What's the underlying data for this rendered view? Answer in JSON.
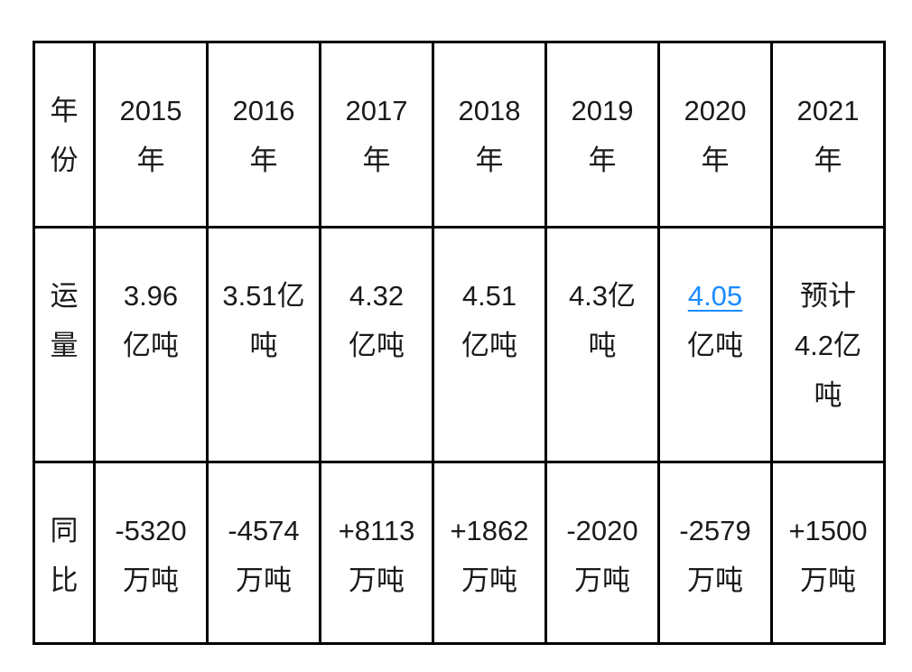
{
  "page": {
    "background_color": "#ffffff",
    "text_color": "#1a1a1a",
    "border_color": "#000000",
    "link_color": "#1a8cff"
  },
  "table": {
    "years": [
      "2015",
      "2016",
      "2017",
      "2018",
      "2019",
      "2020",
      "2021"
    ],
    "rows": [
      {
        "id": "year",
        "header_lines": [
          "年",
          "份"
        ],
        "cells": [
          {
            "lines": [
              "2015",
              "年"
            ]
          },
          {
            "lines": [
              "2016",
              "年"
            ]
          },
          {
            "lines": [
              "2017",
              "年"
            ]
          },
          {
            "lines": [
              "2018",
              "年"
            ]
          },
          {
            "lines": [
              "2019",
              "年"
            ]
          },
          {
            "lines": [
              "2020",
              "年"
            ]
          },
          {
            "lines": [
              "2021",
              "年"
            ]
          }
        ]
      },
      {
        "id": "volume",
        "header_lines": [
          "运",
          "量"
        ],
        "cells": [
          {
            "lines": [
              "3.96",
              "亿吨"
            ]
          },
          {
            "lines": [
              "3.51亿",
              "吨"
            ]
          },
          {
            "lines": [
              "4.32",
              "亿吨"
            ]
          },
          {
            "lines": [
              "4.51",
              "亿吨"
            ]
          },
          {
            "lines": [
              "4.3亿",
              "吨"
            ]
          },
          {
            "lines": [
              "4.05",
              "亿吨"
            ],
            "link": true,
            "link_line": 0,
            "link_name": "volume-2020-link"
          },
          {
            "lines": [
              "预计",
              "4.2亿",
              "吨"
            ]
          }
        ]
      },
      {
        "id": "yoy",
        "header_lines": [
          "同",
          "比"
        ],
        "cells": [
          {
            "lines": [
              "-5320",
              "万吨"
            ]
          },
          {
            "lines": [
              "-4574",
              "万吨"
            ]
          },
          {
            "lines": [
              "+8113",
              "万吨"
            ]
          },
          {
            "lines": [
              "+1862",
              "万吨"
            ]
          },
          {
            "lines": [
              "-2020",
              "万吨"
            ]
          },
          {
            "lines": [
              "-2579",
              "万吨"
            ]
          },
          {
            "lines": [
              "+1500",
              "万吨"
            ]
          }
        ]
      }
    ]
  },
  "chart_data": {
    "type": "table",
    "categories": [
      "2015年",
      "2016年",
      "2017年",
      "2018年",
      "2019年",
      "2020年",
      "2021年"
    ],
    "series": [
      {
        "name": "运量",
        "values": [
          "3.96亿吨",
          "3.51亿吨",
          "4.32亿吨",
          "4.51亿吨",
          "4.3亿吨",
          "4.05亿吨",
          "预计4.2亿吨"
        ]
      },
      {
        "name": "同比",
        "values": [
          "-5320万吨",
          "-4574万吨",
          "+8113万吨",
          "+1862万吨",
          "-2020万吨",
          "-2579万吨",
          "+1500万吨"
        ]
      }
    ],
    "row_headers": [
      "年份",
      "运量",
      "同比"
    ],
    "notes": "运量 row 2020 value 4.05 is rendered as a blue underlined hyperlink; 2021 values are forecasts (预计)."
  }
}
